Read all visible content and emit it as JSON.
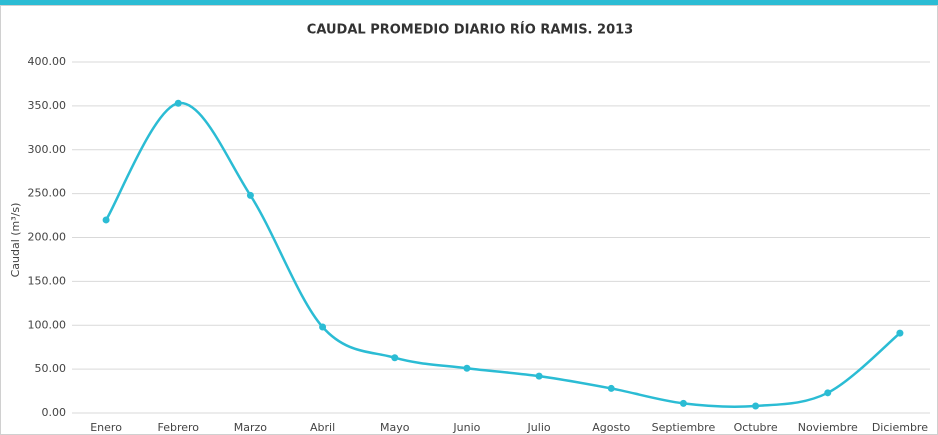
{
  "chart_data": {
    "type": "line",
    "title": "CAUDAL PROMEDIO DIARIO RÍO RAMIS. 2013",
    "y_label": "Caudal (m³/s)",
    "categories": [
      "Enero",
      "Febrero",
      "Marzo",
      "Abril",
      "Mayo",
      "Junio",
      "Julio",
      "Agosto",
      "Septiembre",
      "Octubre",
      "Noviembre",
      "Diciembre"
    ],
    "values": [
      220,
      353,
      248,
      98,
      63,
      51,
      42,
      28,
      11,
      8,
      23,
      91
    ],
    "color": "#2bbcd4",
    "ylim": [
      0,
      400
    ],
    "yticks": [
      {
        "value": 0,
        "label": "0.00"
      },
      {
        "value": 50,
        "label": "50.00"
      },
      {
        "value": 100,
        "label": "100.00"
      },
      {
        "value": 150,
        "label": "150.00"
      },
      {
        "value": 200,
        "label": "200.00"
      },
      {
        "value": 250,
        "label": "250.00"
      },
      {
        "value": 300,
        "label": "300.00"
      },
      {
        "value": 350,
        "label": "350.00"
      },
      {
        "value": 400,
        "label": "400.00"
      }
    ],
    "grid": true,
    "smooth": true
  }
}
